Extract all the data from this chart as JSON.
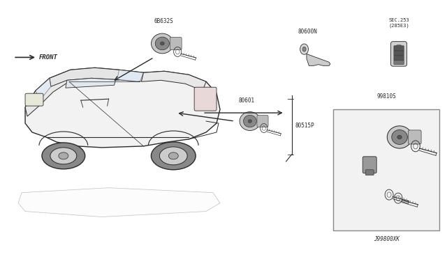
{
  "background_color": "#ffffff",
  "fig_width": 6.4,
  "fig_height": 3.72,
  "dpi": 100,
  "labels": {
    "part_6B632S": "6B632S",
    "part_80600N": "80600N",
    "part_SEC253": "SEC.253\n(285E3)",
    "part_80601": "80601",
    "part_80515P": "80515P",
    "part_99810S": "99810S",
    "bottom_label": "J99800XK",
    "front_label": "FRONT"
  },
  "lc": "#2a2a2a",
  "tc": "#2a2a2a",
  "box_facecolor": "#f0f0f0",
  "box_edgecolor": "#888888"
}
